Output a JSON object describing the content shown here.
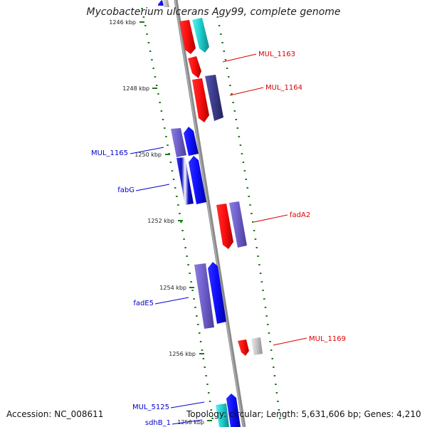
{
  "title": "Mycobacterium ulcerans Agy99, complete genome",
  "footer": {
    "accession": "Accession: NC_008611",
    "summary": "Topology: circular; Length: 5,631,606 bp; Genes: 4,210"
  },
  "colors": {
    "forward": "#ff0000",
    "reverse": "#0000ff",
    "purple": "#7060cc",
    "dark_purple": "#3c3c8c",
    "cyan": "#20d0d0",
    "gray": "#c8c8c8",
    "tick": "#1a7a1a",
    "axis": "#8a8a8a"
  },
  "scale_ticks": [
    {
      "label": "1246 kbp"
    },
    {
      "label": "1248 kbp"
    },
    {
      "label": "1250 kbp"
    },
    {
      "label": "1252 kbp"
    },
    {
      "label": "1254 kbp"
    },
    {
      "label": "1256 kbp"
    },
    {
      "label": "1258 kbp"
    }
  ],
  "gene_labels": [
    {
      "name": "MUL_1163",
      "strand": "forward"
    },
    {
      "name": "MUL_1164",
      "strand": "forward"
    },
    {
      "name": "MUL_1165",
      "strand": "reverse"
    },
    {
      "name": "fabG",
      "strand": "reverse"
    },
    {
      "name": "fadA2",
      "strand": "forward"
    },
    {
      "name": "fadE5",
      "strand": "reverse"
    },
    {
      "name": "MUL_1169",
      "strand": "forward"
    },
    {
      "name": "MUL_5125",
      "strand": "reverse"
    },
    {
      "name": "sdhB_1",
      "strand": "reverse"
    }
  ]
}
